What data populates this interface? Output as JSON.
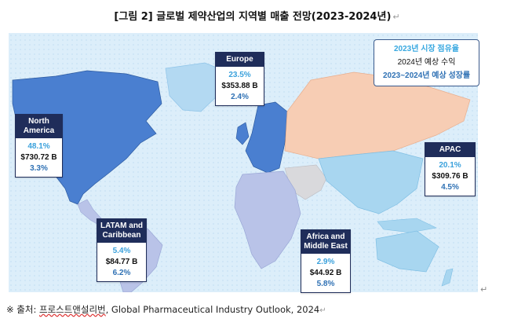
{
  "title": "[그림 2] 글로벌 제약산업의 지역별 매출 전망(2023-2024년)",
  "legend": {
    "line1": "2023년 시장 점유율",
    "line2": "2024년 예상 수익",
    "line3": "2023~2024년 예상 성장률"
  },
  "regions": {
    "north_america": {
      "name": "North America",
      "share": "48.1%",
      "revenue": "$730.72 B",
      "growth": "3.3%"
    },
    "europe": {
      "name": "Europe",
      "share": "23.5%",
      "revenue": "$353.88 B",
      "growth": "2.4%"
    },
    "apac": {
      "name": "APAC",
      "share": "20.1%",
      "revenue": "$309.76 B",
      "growth": "4.5%"
    },
    "latam": {
      "name": "LATAM and Caribbean",
      "share": "5.4%",
      "revenue": "$84.77 B",
      "growth": "6.2%"
    },
    "mea": {
      "name": "Africa and Middle East",
      "share": "2.9%",
      "revenue": "$44.92 B",
      "growth": "5.8%"
    }
  },
  "colors": {
    "card_header": "#1f2d5a",
    "share_text": "#3aa1dc",
    "growth_text": "#2f71b4",
    "north_america": "#4a7fd0",
    "europe": "#4a7fd0",
    "russia": "#f7cdb4",
    "apac": "#a8d6f0",
    "latam": "#b9c3e8",
    "africa": "#b9c3e8",
    "middle_east": "#d9d9dc",
    "ocean": "#dceefa"
  },
  "footnote": {
    "prefix": "※ 출처: ",
    "source": "프로스트앤설리번",
    "rest": ", Global Pharmaceutical Industry Outlook, 2024"
  }
}
